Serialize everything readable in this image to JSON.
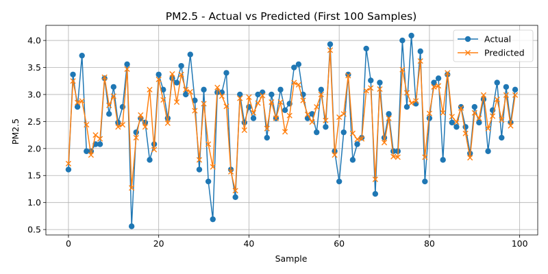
{
  "chart_data": {
    "type": "line",
    "title": "PM2.5 - Actual vs Predicted (First 100 Samples)",
    "xlabel": "Sample",
    "ylabel": "PM2.5",
    "xlim": [
      -5,
      104
    ],
    "ylim": [
      0.4,
      4.28
    ],
    "xticks": [
      0,
      20,
      40,
      60,
      80,
      100
    ],
    "yticks": [
      0.5,
      1.0,
      1.5,
      2.0,
      2.5,
      3.0,
      3.5,
      4.0
    ],
    "ytick_labels": [
      "0.5",
      "1.0",
      "1.5",
      "2.0",
      "2.5",
      "3.0",
      "3.5",
      "4.0"
    ],
    "grid": true,
    "legend_position": "top-right",
    "x": [
      0,
      1,
      2,
      3,
      4,
      5,
      6,
      7,
      8,
      9,
      10,
      11,
      12,
      13,
      14,
      15,
      16,
      17,
      18,
      19,
      20,
      21,
      22,
      23,
      24,
      25,
      26,
      27,
      28,
      29,
      30,
      31,
      32,
      33,
      34,
      35,
      36,
      37,
      38,
      39,
      40,
      41,
      42,
      43,
      44,
      45,
      46,
      47,
      48,
      49,
      50,
      51,
      52,
      53,
      54,
      55,
      56,
      57,
      58,
      59,
      60,
      61,
      62,
      63,
      64,
      65,
      66,
      67,
      68,
      69,
      70,
      71,
      72,
      73,
      74,
      75,
      76,
      77,
      78,
      79,
      80,
      81,
      82,
      83,
      84,
      85,
      86,
      87,
      88,
      89,
      90,
      91,
      92,
      93,
      94,
      95,
      96,
      97,
      98,
      99
    ],
    "series": [
      {
        "name": "Actual",
        "color": "#1f77b4",
        "marker": "circle",
        "values": [
          1.61,
          3.37,
          2.77,
          3.72,
          1.95,
          1.95,
          2.08,
          2.08,
          3.3,
          2.64,
          3.14,
          2.48,
          2.77,
          3.56,
          0.56,
          2.3,
          2.56,
          2.48,
          1.79,
          2.08,
          3.37,
          3.09,
          2.56,
          3.3,
          3.22,
          3.53,
          3.0,
          3.74,
          2.89,
          1.61,
          3.09,
          1.39,
          0.69,
          3.04,
          3.04,
          3.4,
          1.61,
          1.1,
          3.0,
          2.48,
          2.77,
          2.56,
          3.0,
          3.04,
          2.2,
          3.0,
          2.56,
          3.09,
          2.71,
          2.83,
          3.5,
          3.56,
          3.0,
          2.56,
          2.64,
          2.3,
          3.09,
          2.4,
          3.93,
          1.95,
          1.39,
          2.3,
          3.37,
          1.79,
          2.08,
          2.2,
          3.85,
          3.26,
          1.16,
          3.22,
          2.2,
          2.64,
          1.95,
          1.95,
          4.0,
          2.77,
          4.09,
          2.83,
          3.8,
          1.39,
          2.56,
          3.22,
          3.3,
          1.79,
          3.37,
          2.48,
          2.4,
          2.77,
          2.4,
          1.91,
          2.77,
          2.48,
          2.91,
          1.95,
          2.71,
          3.22,
          2.2,
          3.14,
          2.48,
          3.09
        ]
      },
      {
        "name": "Predicted",
        "color": "#ff7f0e",
        "marker": "x",
        "values": [
          1.72,
          3.25,
          2.85,
          2.88,
          2.44,
          1.88,
          2.25,
          2.18,
          3.32,
          2.8,
          2.97,
          2.4,
          2.44,
          3.47,
          1.27,
          2.2,
          2.62,
          2.4,
          3.09,
          1.98,
          3.28,
          2.9,
          2.47,
          3.38,
          2.86,
          3.37,
          3.09,
          3.05,
          2.7,
          1.79,
          2.83,
          2.08,
          1.66,
          3.13,
          2.97,
          2.78,
          1.57,
          1.22,
          2.93,
          2.34,
          2.95,
          2.66,
          2.84,
          2.98,
          2.37,
          2.86,
          2.56,
          2.86,
          2.31,
          2.61,
          3.22,
          3.18,
          2.89,
          2.63,
          2.49,
          2.77,
          3.0,
          2.52,
          3.82,
          1.88,
          2.58,
          2.64,
          3.35,
          2.28,
          2.17,
          2.18,
          3.07,
          3.12,
          1.43,
          3.1,
          2.11,
          2.56,
          1.85,
          1.84,
          3.46,
          3.03,
          2.84,
          2.88,
          3.62,
          1.84,
          2.65,
          3.14,
          3.16,
          2.66,
          3.4,
          2.59,
          2.49,
          2.75,
          2.28,
          1.83,
          2.66,
          2.56,
          2.99,
          2.37,
          2.6,
          2.91,
          2.53,
          2.99,
          2.42,
          2.99
        ]
      }
    ]
  }
}
